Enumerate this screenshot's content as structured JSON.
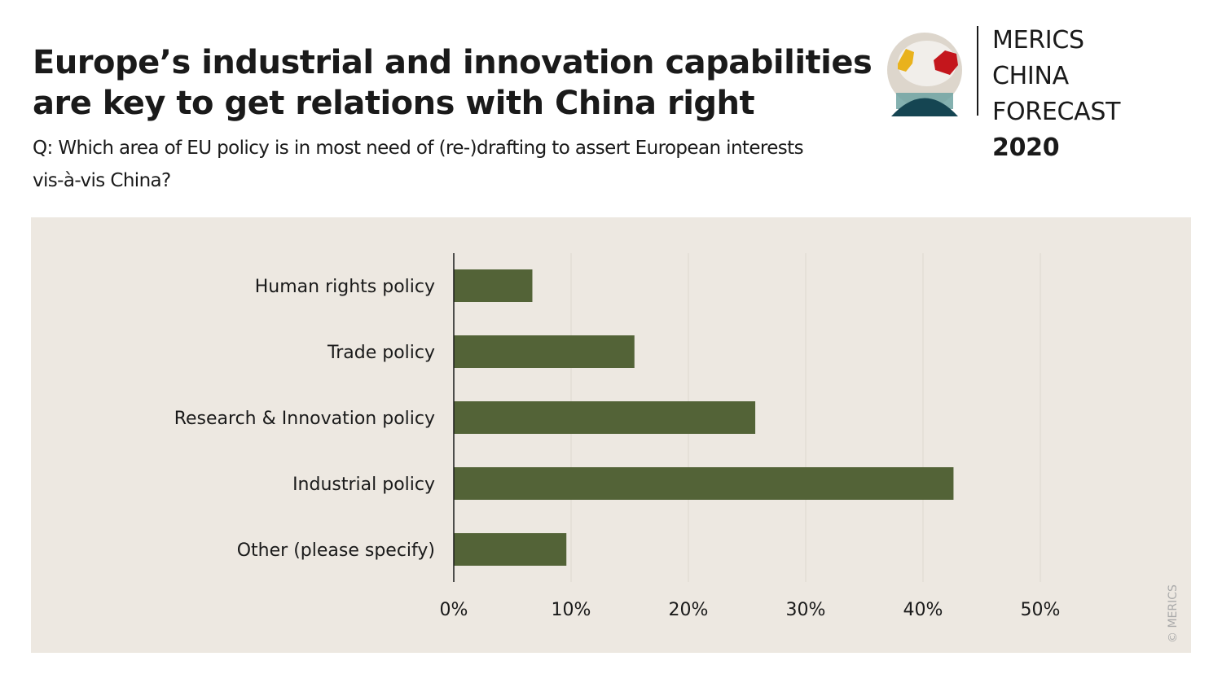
{
  "header": {
    "title_line1": "Europe’s industrial and innovation capabilities",
    "title_line2": "are key to get relations with China right",
    "question": "Q: Which area of EU policy is in most need of (re-)drafting to assert European interests vis-à-vis China?"
  },
  "logo": {
    "line1": "MERICS",
    "line2": "CHINA FORECAST",
    "line3": "2020"
  },
  "copyright": "© MERICS",
  "colors": {
    "bar": "#536337",
    "background": "#ede8e1",
    "grid": "#ddd7cf"
  },
  "chart_data": {
    "type": "bar",
    "orientation": "horizontal",
    "categories": [
      "Human rights policy",
      "Trade policy",
      "Research & Innovation policy",
      "Industrial policy",
      "Other (please specify)"
    ],
    "values": [
      6.7,
      15.4,
      25.7,
      42.6,
      9.6
    ],
    "unit": "%",
    "xlim": [
      0,
      50
    ],
    "xticks": [
      0,
      10,
      20,
      30,
      40,
      50
    ],
    "xtick_labels": [
      "0%",
      "10%",
      "20%",
      "30%",
      "40%",
      "50%"
    ],
    "grid": true
  }
}
